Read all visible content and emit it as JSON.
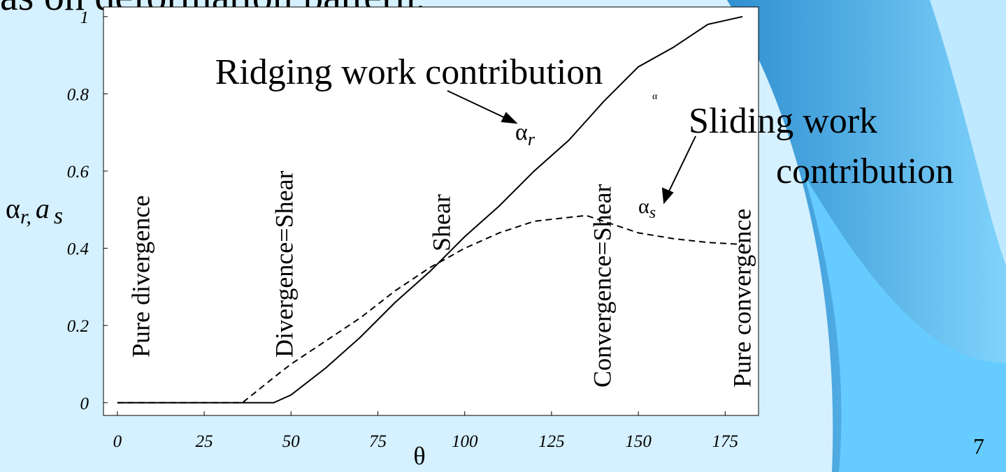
{
  "slide_title": "as on deformation pattern.",
  "page_number": "7",
  "chart_data": {
    "type": "line",
    "x_label": "θ",
    "y_label": {
      "main": "α",
      "sub1": "r,",
      "mid": "a",
      "sub2": "s"
    },
    "x": [
      0,
      36,
      45,
      50,
      60,
      70,
      80,
      90,
      100,
      110,
      120,
      130,
      135,
      140,
      150,
      160,
      170,
      180
    ],
    "series": [
      {
        "name": "Ridging work contribution",
        "color": "#000000",
        "dash": "solid",
        "values": [
          0,
          0,
          0,
          0.02,
          0.09,
          0.17,
          0.26,
          0.34,
          0.43,
          0.51,
          0.6,
          0.68,
          0.73,
          0.78,
          0.87,
          0.92,
          0.98,
          1.0
        ]
      },
      {
        "name": "Sliding work contribution",
        "color": "#000000",
        "dash": "dashed",
        "values": [
          0,
          0,
          0.065,
          0.1,
          0.16,
          0.22,
          0.29,
          0.35,
          0.4,
          0.44,
          0.47,
          0.48,
          0.485,
          0.47,
          0.44,
          0.425,
          0.415,
          0.41
        ]
      }
    ],
    "xlim": [
      -4,
      184.6
    ],
    "ylim": [
      -0.033,
      1.025
    ],
    "xticks": [
      0,
      25,
      50,
      75,
      100,
      125,
      150,
      175
    ],
    "yticks": [
      0,
      0.2,
      0.4,
      0.6,
      0.8,
      1
    ],
    "regions": [
      "Pure divergence",
      "Divergence=Shear",
      "Shear",
      "Convergence=Shear",
      "Pure convergence"
    ],
    "callouts": {
      "ridging": "Ridging work contribution",
      "sliding_1": "Sliding work",
      "sliding_2": "contribution"
    },
    "symbol_r": {
      "main": "α",
      "sub": "r"
    },
    "symbol_s": {
      "main": "α",
      "sub": "s"
    },
    "small_symbol": "α"
  }
}
